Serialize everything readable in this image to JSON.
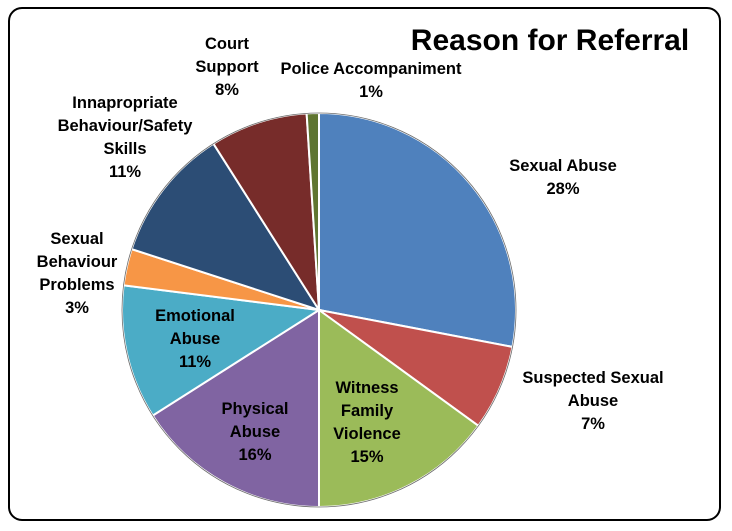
{
  "chart_data": {
    "type": "pie",
    "title": "Reason for Referral",
    "slices": [
      {
        "name": "Sexual Abuse",
        "value": 28,
        "label": [
          "Sexual Abuse",
          "28%"
        ],
        "color": "#4F81BD"
      },
      {
        "name": "Suspected Sexual Abuse",
        "value": 7,
        "label": [
          "Suspected Sexual",
          "Abuse",
          "7%"
        ],
        "color": "#C0504D"
      },
      {
        "name": "Witness Family Violence",
        "value": 15,
        "label": [
          "Witness",
          "Family",
          "Violence",
          "15%"
        ],
        "color": "#9BBB59"
      },
      {
        "name": "Physical Abuse",
        "value": 16,
        "label": [
          "Physical",
          "Abuse",
          "16%"
        ],
        "color": "#8064A2"
      },
      {
        "name": "Emotional Abuse",
        "value": 11,
        "label": [
          "Emotional",
          "Abuse",
          "11%"
        ],
        "color": "#4BACC6"
      },
      {
        "name": "Sexual Behaviour Problems",
        "value": 3,
        "label": [
          "Sexual",
          "Behaviour",
          "Problems",
          "3%"
        ],
        "color": "#F79646"
      },
      {
        "name": "Innapropriate Behaviour/Safety Skills",
        "value": 11,
        "label": [
          "Innapropriate",
          "Behaviour/Safety",
          "Skills",
          "11%"
        ],
        "color": "#2C4D75"
      },
      {
        "name": "Court Support",
        "value": 8,
        "label": [
          "Court",
          "Support",
          "8%"
        ],
        "color": "#772C2A"
      },
      {
        "name": "Police Accompaniment",
        "value": 1,
        "label": [
          "Police Accompaniment",
          "1%"
        ],
        "color": "#5F7530"
      }
    ]
  }
}
